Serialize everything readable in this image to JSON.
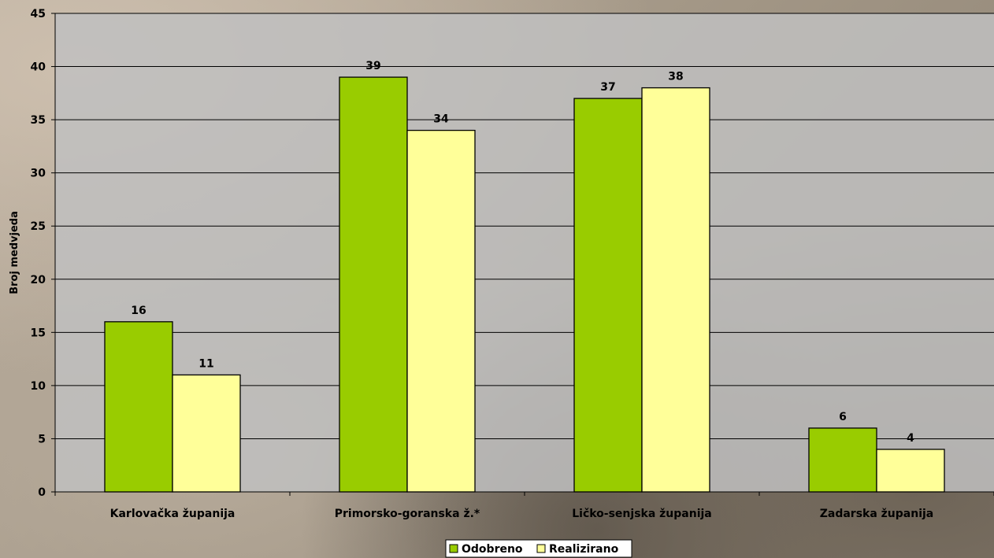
{
  "chart_data": {
    "type": "bar",
    "title": "",
    "xlabel": "",
    "ylabel": "Broj medvjeda",
    "ylim": [
      0,
      45
    ],
    "ytick_step": 5,
    "grid": true,
    "legend_position": "bottom",
    "categories": [
      "Karlovačka županija",
      "Primorsko-goranska ž.*",
      "Ličko-senjska županija",
      "Zadarska županija"
    ],
    "series": [
      {
        "name": "Odobreno",
        "color": "#99cc00",
        "values": [
          16,
          39,
          37,
          6
        ]
      },
      {
        "name": "Realizirano",
        "color": "#ffff99",
        "values": [
          11,
          34,
          38,
          4
        ]
      }
    ],
    "plot_background": "#c0c0c0"
  }
}
